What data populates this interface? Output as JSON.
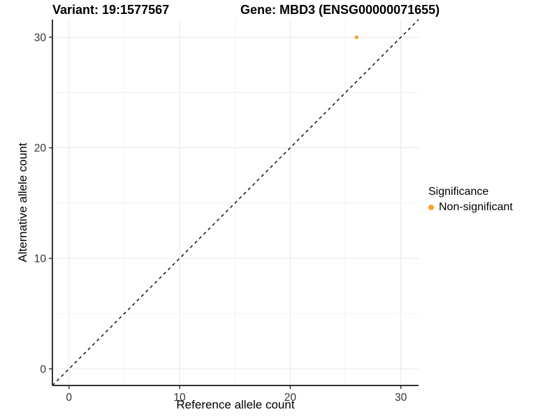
{
  "chart_data": {
    "type": "scatter",
    "title_left": "Variant: 19:1577567",
    "title_right": "Gene: MBD3 (ENSG00000071655)",
    "xlabel": "Reference allele count",
    "ylabel": "Alternative allele count",
    "xlim": [
      -1.5,
      31.6
    ],
    "ylim": [
      -1.5,
      31.6
    ],
    "x_ticks": [
      0,
      10,
      20,
      30
    ],
    "y_ticks": [
      0,
      10,
      20,
      30
    ],
    "minor_gridlines": [
      5,
      15,
      25
    ],
    "grid": "on",
    "identity_line": {
      "style": "dashed",
      "color": "#000000"
    },
    "series": [
      {
        "name": "Non-significant",
        "color": "#FBA12A",
        "points": [
          [
            26,
            30
          ]
        ]
      }
    ],
    "legend": {
      "title": "Significance",
      "position": "right",
      "items": [
        {
          "label": "Non-significant",
          "color": "#FBA12A"
        }
      ]
    },
    "style": {
      "background": "#FFFFFF",
      "axis_line_color": "#333333",
      "tick_label_color": "#333333",
      "grid_major_color": "#E7E7E7",
      "grid_minor_color": "#F1F1F1"
    }
  }
}
